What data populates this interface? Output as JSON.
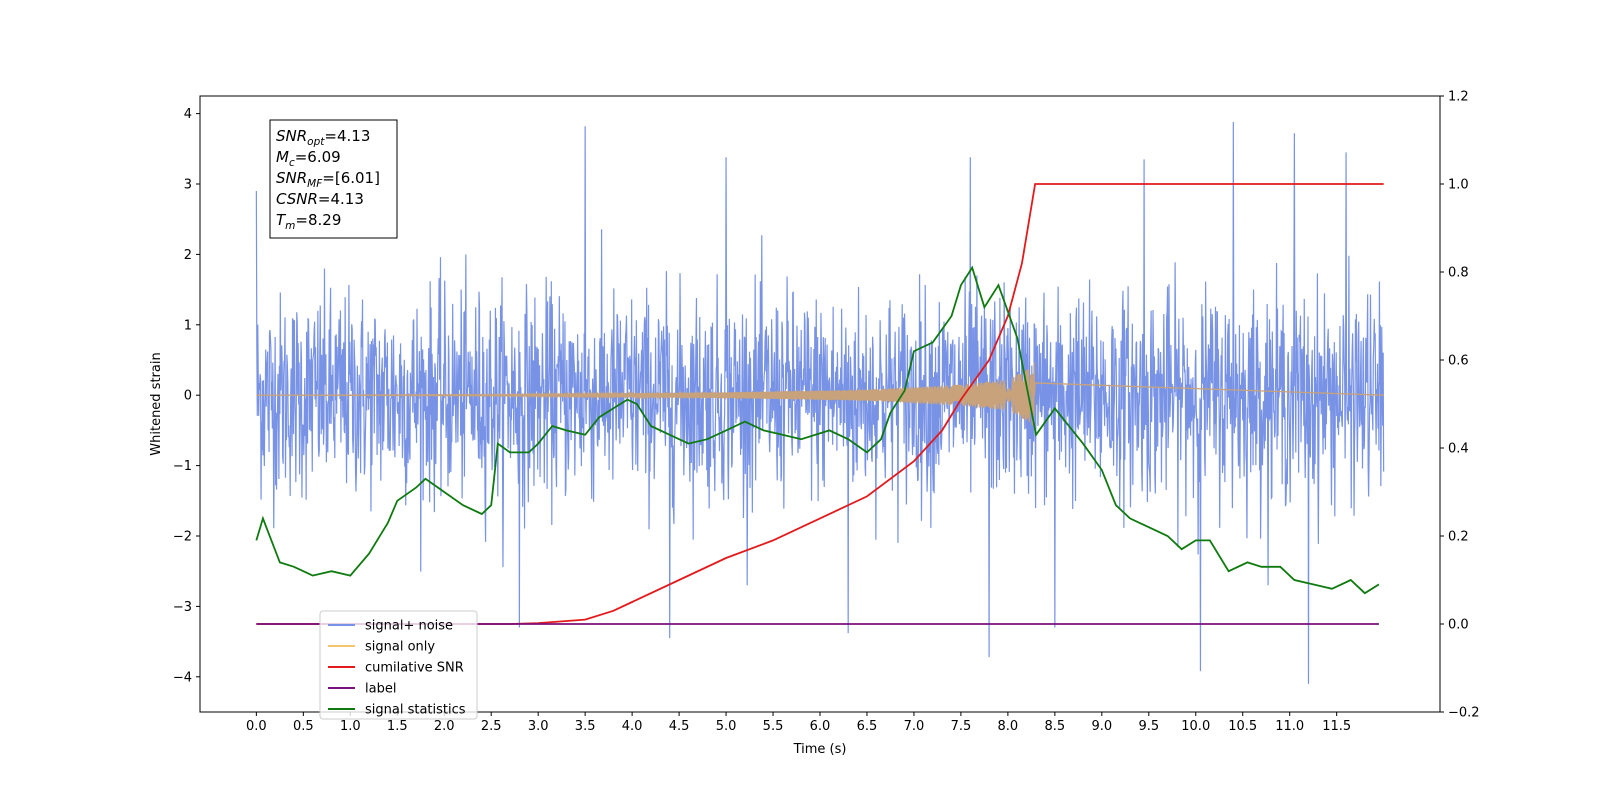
{
  "chart_data": {
    "type": "line",
    "xlabel": "Time (s)",
    "ylabel": "Whitened strain",
    "xlim": [
      -0.6,
      12.6
    ],
    "ylim": [
      -4.5,
      4.25
    ],
    "y2lim": [
      -0.2,
      1.2
    ],
    "x_ticks": [
      0.0,
      0.5,
      1.0,
      1.5,
      2.0,
      2.5,
      3.0,
      3.5,
      4.0,
      4.5,
      5.0,
      5.5,
      6.0,
      6.5,
      7.0,
      7.5,
      8.0,
      8.5,
      9.0,
      9.5,
      10.0,
      10.5,
      11.0,
      11.5
    ],
    "x_tick_labels": [
      "0.0",
      "0.5",
      "1.0",
      "1.5",
      "2.0",
      "2.5",
      "3.0",
      "3.5",
      "4.0",
      "4.5",
      "5.0",
      "5.5",
      "6.0",
      "6.5",
      "7.0",
      "7.5",
      "8.0",
      "8.5",
      "9.0",
      "9.5",
      "10.0",
      "10.5",
      "11.0",
      "11.5"
    ],
    "y_ticks": [
      -4,
      -3,
      -2,
      -1,
      0,
      1,
      2,
      3,
      4
    ],
    "y_tick_labels": [
      "−4",
      "−3",
      "−2",
      "−1",
      "0",
      "1",
      "2",
      "3",
      "4"
    ],
    "y2_ticks": [
      -0.2,
      0.0,
      0.2,
      0.4,
      0.6,
      0.8,
      1.0,
      1.2
    ],
    "y2_tick_labels": [
      "−0.2",
      "0.0",
      "0.2",
      "0.4",
      "0.6",
      "0.8",
      "1.0",
      "1.2"
    ],
    "grid": false,
    "legend_position": "bottom-left",
    "annotation": {
      "lines": [
        {
          "base": "SNR",
          "sub": "opt",
          "value": "=4.13"
        },
        {
          "base": "M",
          "sub": "c",
          "value": "=6.09"
        },
        {
          "base": "SNR",
          "sub": "MF",
          "value": "=[6.01]"
        },
        {
          "base": "CSNR",
          "sub": "",
          "value": "=4.13"
        },
        {
          "base": "T",
          "sub": "m",
          "value": "=8.29"
        }
      ]
    },
    "series": [
      {
        "name": "signal+ noise",
        "color": "#7893e6",
        "axis": "left",
        "kind": "noise",
        "x_range": [
          0.0,
          12.0
        ],
        "typical_range": [
          -1.5,
          1.5
        ],
        "peaks_up": [
          [
            0.0,
            2.9
          ],
          [
            3.5,
            3.82
          ],
          [
            5.0,
            3.38
          ],
          [
            7.6,
            3.38
          ],
          [
            10.4,
            3.88
          ],
          [
            11.05,
            3.72
          ],
          [
            11.6,
            3.45
          ],
          [
            9.45,
            3.35
          ]
        ],
        "peaks_down": [
          [
            4.4,
            -3.45
          ],
          [
            6.3,
            -3.38
          ],
          [
            7.8,
            -3.72
          ],
          [
            10.05,
            -3.92
          ],
          [
            11.2,
            -4.1
          ],
          [
            8.5,
            -3.3
          ],
          [
            2.8,
            -3.3
          ]
        ]
      },
      {
        "name": "signal only",
        "color": "#c8a27a",
        "axis": "left",
        "kind": "chirp",
        "x_range": [
          0.0,
          12.0
        ],
        "merger_time": 8.29,
        "amplitude_points": [
          [
            0.0,
            0.0
          ],
          [
            2.5,
            0.01
          ],
          [
            5.0,
            0.04
          ],
          [
            6.5,
            0.08
          ],
          [
            7.5,
            0.15
          ],
          [
            8.0,
            0.22
          ],
          [
            8.25,
            0.4
          ],
          [
            8.29,
            0.5
          ],
          [
            8.3,
            0.0
          ]
        ]
      },
      {
        "name": "cumilative SNR",
        "color": "#e31a1c",
        "axis": "right",
        "points": [
          [
            0.0,
            0.0
          ],
          [
            2.7,
            0.0
          ],
          [
            3.0,
            0.002
          ],
          [
            3.5,
            0.01
          ],
          [
            3.8,
            0.03
          ],
          [
            4.0,
            0.05
          ],
          [
            4.5,
            0.1
          ],
          [
            5.0,
            0.15
          ],
          [
            5.5,
            0.19
          ],
          [
            6.0,
            0.24
          ],
          [
            6.5,
            0.29
          ],
          [
            7.0,
            0.37
          ],
          [
            7.3,
            0.44
          ],
          [
            7.5,
            0.51
          ],
          [
            7.8,
            0.6
          ],
          [
            8.0,
            0.7
          ],
          [
            8.15,
            0.82
          ],
          [
            8.29,
            1.0
          ],
          [
            8.35,
            1.0
          ],
          [
            12.0,
            1.0
          ]
        ]
      },
      {
        "name": "label",
        "color": "#7b0f7b",
        "axis": "right",
        "points": [
          [
            0.0,
            0.0
          ],
          [
            11.95,
            0.0
          ]
        ]
      },
      {
        "name": "signal statistics",
        "color": "#0f7a0f",
        "axis": "right",
        "points": [
          [
            0.0,
            0.19
          ],
          [
            0.07,
            0.24
          ],
          [
            0.25,
            0.14
          ],
          [
            0.4,
            0.13
          ],
          [
            0.5,
            0.12
          ],
          [
            0.6,
            0.11
          ],
          [
            0.8,
            0.12
          ],
          [
            1.0,
            0.11
          ],
          [
            1.2,
            0.16
          ],
          [
            1.4,
            0.23
          ],
          [
            1.5,
            0.28
          ],
          [
            1.7,
            0.31
          ],
          [
            1.8,
            0.33
          ],
          [
            2.0,
            0.3
          ],
          [
            2.2,
            0.27
          ],
          [
            2.4,
            0.25
          ],
          [
            2.5,
            0.27
          ],
          [
            2.57,
            0.41
          ],
          [
            2.7,
            0.39
          ],
          [
            2.9,
            0.39
          ],
          [
            3.0,
            0.41
          ],
          [
            3.15,
            0.45
          ],
          [
            3.3,
            0.44
          ],
          [
            3.5,
            0.43
          ],
          [
            3.65,
            0.47
          ],
          [
            3.8,
            0.49
          ],
          [
            3.95,
            0.51
          ],
          [
            4.05,
            0.5
          ],
          [
            4.2,
            0.45
          ],
          [
            4.4,
            0.43
          ],
          [
            4.6,
            0.41
          ],
          [
            4.8,
            0.42
          ],
          [
            5.0,
            0.44
          ],
          [
            5.2,
            0.46
          ],
          [
            5.4,
            0.44
          ],
          [
            5.6,
            0.43
          ],
          [
            5.8,
            0.42
          ],
          [
            6.1,
            0.44
          ],
          [
            6.3,
            0.42
          ],
          [
            6.5,
            0.39
          ],
          [
            6.65,
            0.42
          ],
          [
            6.75,
            0.48
          ],
          [
            6.9,
            0.53
          ],
          [
            7.0,
            0.62
          ],
          [
            7.2,
            0.64
          ],
          [
            7.4,
            0.7
          ],
          [
            7.5,
            0.77
          ],
          [
            7.62,
            0.81
          ],
          [
            7.75,
            0.72
          ],
          [
            7.9,
            0.77
          ],
          [
            8.1,
            0.65
          ],
          [
            8.3,
            0.43
          ],
          [
            8.5,
            0.49
          ],
          [
            8.65,
            0.45
          ],
          [
            8.8,
            0.41
          ],
          [
            9.0,
            0.35
          ],
          [
            9.15,
            0.27
          ],
          [
            9.3,
            0.24
          ],
          [
            9.5,
            0.22
          ],
          [
            9.7,
            0.2
          ],
          [
            9.85,
            0.17
          ],
          [
            10.0,
            0.19
          ],
          [
            10.15,
            0.19
          ],
          [
            10.35,
            0.12
          ],
          [
            10.55,
            0.14
          ],
          [
            10.7,
            0.13
          ],
          [
            10.9,
            0.13
          ],
          [
            11.05,
            0.1
          ],
          [
            11.25,
            0.09
          ],
          [
            11.45,
            0.08
          ],
          [
            11.65,
            0.1
          ],
          [
            11.8,
            0.07
          ],
          [
            11.95,
            0.09
          ]
        ]
      }
    ]
  },
  "legend": {
    "items": [
      {
        "label": "signal+ noise",
        "color": "#7893e6"
      },
      {
        "label": "signal only",
        "color": "#f5c46e"
      },
      {
        "label": "cumilative SNR",
        "color": "#e31a1c"
      },
      {
        "label": "label",
        "color": "#7b0f7b"
      },
      {
        "label": "signal statistics",
        "color": "#0f7a0f"
      }
    ]
  }
}
